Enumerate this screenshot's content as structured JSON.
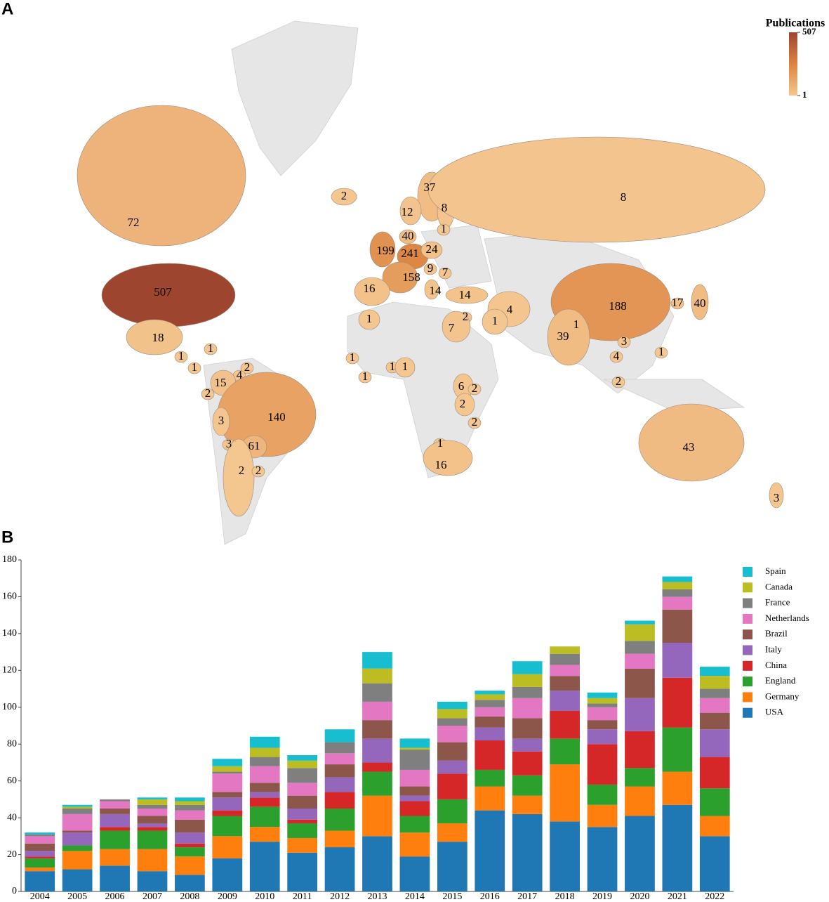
{
  "chart_data": [
    {
      "type": "choropleth",
      "label": "A",
      "title": "Publications",
      "clim": [
        1,
        507
      ],
      "cticks": [
        1,
        507
      ],
      "colors": [
        "#f4c690",
        "#dc8440",
        "#9e4530"
      ],
      "values": [
        72,
        507,
        18,
        2,
        37,
        8,
        12,
        40,
        1,
        199,
        241,
        24,
        9,
        7,
        158,
        16,
        14,
        14,
        4,
        1,
        2,
        1,
        7,
        8,
        188,
        17,
        40,
        1,
        39,
        3,
        4,
        1,
        2,
        43,
        3,
        1,
        1,
        1,
        2,
        4,
        15,
        2,
        140,
        3,
        3,
        61,
        2,
        2,
        1,
        1,
        1,
        1,
        6,
        2,
        2,
        2,
        1,
        16
      ]
    },
    {
      "type": "bar",
      "stacked": true,
      "label": "B",
      "legend": "right",
      "categories": [
        "2004",
        "2005",
        "2006",
        "2007",
        "2008",
        "2009",
        "2010",
        "2011",
        "2012",
        "2013",
        "2014",
        "2015",
        "2016",
        "2017",
        "2018",
        "2019",
        "2020",
        "2021",
        "2022"
      ],
      "ylim": [
        0,
        180
      ],
      "yticks": [
        0,
        20,
        40,
        60,
        80,
        100,
        120,
        140,
        160,
        180
      ],
      "series": [
        {
          "name": "USA",
          "color": "#1f77b4",
          "values": [
            11,
            12,
            14,
            11,
            9,
            18,
            27,
            21,
            24,
            30,
            19,
            27,
            44,
            42,
            38,
            35,
            41,
            47,
            30
          ]
        },
        {
          "name": "Germany",
          "color": "#ff7f0e",
          "values": [
            2,
            10,
            9,
            12,
            10,
            12,
            8,
            8,
            9,
            22,
            13,
            10,
            13,
            10,
            31,
            12,
            16,
            18,
            11
          ]
        },
        {
          "name": "England",
          "color": "#2ca02c",
          "values": [
            5,
            3,
            10,
            10,
            5,
            11,
            11,
            8,
            12,
            13,
            9,
            13,
            9,
            11,
            14,
            11,
            10,
            24,
            15
          ]
        },
        {
          "name": "China",
          "color": "#d62728",
          "values": [
            1,
            0,
            2,
            2,
            2,
            3,
            5,
            2,
            9,
            5,
            8,
            14,
            16,
            13,
            15,
            22,
            20,
            27,
            17
          ]
        },
        {
          "name": "Italy",
          "color": "#9467bd",
          "values": [
            3,
            7,
            7,
            2,
            6,
            7,
            3,
            6,
            8,
            13,
            3,
            7,
            7,
            7,
            11,
            8,
            18,
            19,
            15
          ]
        },
        {
          "name": "Brazil",
          "color": "#8c564b",
          "values": [
            4,
            1,
            3,
            4,
            7,
            3,
            5,
            7,
            7,
            10,
            5,
            10,
            6,
            11,
            8,
            5,
            16,
            18,
            9
          ]
        },
        {
          "name": "Netherlands",
          "color": "#e377c2",
          "values": [
            4,
            9,
            4,
            4,
            5,
            10,
            9,
            7,
            6,
            10,
            9,
            9,
            5,
            11,
            6,
            7,
            8,
            7,
            8
          ]
        },
        {
          "name": "France",
          "color": "#7f7f7f",
          "values": [
            1,
            3,
            1,
            2,
            3,
            1,
            5,
            8,
            6,
            10,
            11,
            4,
            4,
            6,
            6,
            2,
            7,
            4,
            5
          ]
        },
        {
          "name": "Canada",
          "color": "#bcbd22",
          "values": [
            0,
            1,
            0,
            3,
            2,
            3,
            5,
            4,
            0,
            8,
            1,
            5,
            3,
            7,
            4,
            3,
            9,
            4,
            7
          ]
        },
        {
          "name": "Spain",
          "color": "#17becf",
          "values": [
            1,
            1,
            0,
            1,
            2,
            4,
            6,
            3,
            7,
            9,
            5,
            4,
            2,
            7,
            0,
            3,
            2,
            3,
            5
          ]
        }
      ]
    }
  ]
}
